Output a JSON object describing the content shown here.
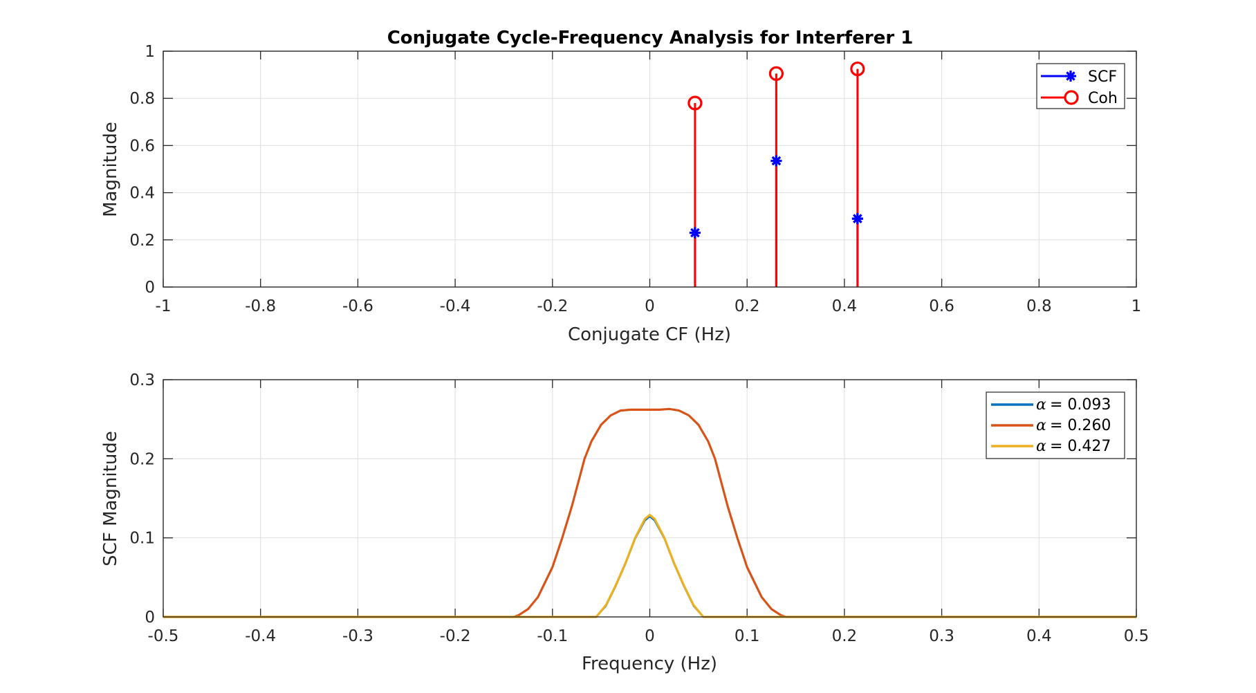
{
  "figure": {
    "title": "Conjugate Cycle-Frequency Analysis for Interferer 1"
  },
  "chart_data": [
    {
      "type": "stem",
      "title": "Conjugate Cycle-Frequency Analysis for Interferer 1",
      "xlabel": "Conjugate CF (Hz)",
      "ylabel": "Magnitude",
      "xlim": [
        -1,
        1
      ],
      "ylim": [
        0,
        1
      ],
      "xticks": [
        -1,
        -0.8,
        -0.6,
        -0.4,
        -0.2,
        0,
        0.2,
        0.4,
        0.6,
        0.8,
        1
      ],
      "xtick_labels": [
        "-1",
        "-0.8",
        "-0.6",
        "-0.4",
        "-0.2",
        "0",
        "0.2",
        "0.4",
        "0.6",
        "0.8",
        "1"
      ],
      "yticks": [
        0,
        0.2,
        0.4,
        0.6,
        0.8,
        1
      ],
      "ytick_labels": [
        "0",
        "0.2",
        "0.4",
        "0.6",
        "0.8",
        "1"
      ],
      "grid": true,
      "legend_position": "top-right",
      "series": [
        {
          "name": "SCF",
          "color": "#0000ff",
          "marker": "asterisk",
          "x": [
            0.093,
            0.26,
            0.427
          ],
          "values": [
            0.23,
            0.535,
            0.29
          ]
        },
        {
          "name": "Coh",
          "color": "#ff0000",
          "marker": "circle",
          "x": [
            0.093,
            0.26,
            0.427
          ],
          "values": [
            0.78,
            0.905,
            0.925
          ]
        }
      ]
    },
    {
      "type": "line",
      "title": "",
      "xlabel": "Frequency (Hz)",
      "ylabel": "SCF Magnitude",
      "xlim": [
        -0.5,
        0.5
      ],
      "ylim": [
        0,
        0.3
      ],
      "xticks": [
        -0.5,
        -0.4,
        -0.3,
        -0.2,
        -0.1,
        0,
        0.1,
        0.2,
        0.3,
        0.4,
        0.5
      ],
      "xtick_labels": [
        "-0.5",
        "-0.4",
        "-0.3",
        "-0.2",
        "-0.1",
        "0",
        "0.1",
        "0.2",
        "0.3",
        "0.4",
        "0.5"
      ],
      "yticks": [
        0,
        0.1,
        0.2,
        0.3
      ],
      "ytick_labels": [
        "0",
        "0.1",
        "0.2",
        "0.3"
      ],
      "grid": true,
      "legend_position": "top-right",
      "series": [
        {
          "name": "α = 0.093",
          "alpha_symbol": "α",
          "alpha_value": "= 0.093",
          "color": "#0072bd",
          "x": [
            -0.5,
            -0.06,
            -0.055,
            -0.045,
            -0.035,
            -0.025,
            -0.015,
            -0.005,
            0,
            0.005,
            0.015,
            0.025,
            0.035,
            0.045,
            0.055,
            0.06,
            0.5
          ],
          "values": [
            0,
            0,
            0,
            0.014,
            0.039,
            0.067,
            0.099,
            0.122,
            0.127,
            0.122,
            0.099,
            0.067,
            0.039,
            0.014,
            0,
            0,
            0
          ]
        },
        {
          "name": "α = 0.260",
          "alpha_symbol": "α",
          "alpha_value": "= 0.260",
          "color": "#d95319",
          "x": [
            -0.5,
            -0.14,
            -0.135,
            -0.125,
            -0.115,
            -0.1,
            -0.09,
            -0.08,
            -0.067,
            -0.06,
            -0.05,
            -0.04,
            -0.03,
            -0.02,
            -0.01,
            0,
            0.01,
            0.02,
            0.03,
            0.04,
            0.05,
            0.06,
            0.067,
            0.08,
            0.09,
            0.1,
            0.115,
            0.125,
            0.135,
            0.14,
            0.5
          ],
          "values": [
            0,
            0,
            0.002,
            0.01,
            0.025,
            0.063,
            0.1,
            0.14,
            0.2,
            0.222,
            0.243,
            0.255,
            0.261,
            0.262,
            0.262,
            0.262,
            0.262,
            0.263,
            0.261,
            0.255,
            0.243,
            0.222,
            0.2,
            0.14,
            0.1,
            0.063,
            0.025,
            0.01,
            0.002,
            0,
            0
          ]
        },
        {
          "name": "α = 0.427",
          "alpha_symbol": "α",
          "alpha_value": "= 0.427",
          "color": "#edb120",
          "x": [
            -0.5,
            -0.06,
            -0.055,
            -0.045,
            -0.035,
            -0.025,
            -0.015,
            -0.005,
            0,
            0.005,
            0.015,
            0.025,
            0.035,
            0.045,
            0.055,
            0.06,
            0.5
          ],
          "values": [
            0,
            0,
            0,
            0.015,
            0.04,
            0.068,
            0.1,
            0.124,
            0.129,
            0.124,
            0.1,
            0.068,
            0.04,
            0.015,
            0,
            0,
            0
          ]
        }
      ]
    }
  ]
}
